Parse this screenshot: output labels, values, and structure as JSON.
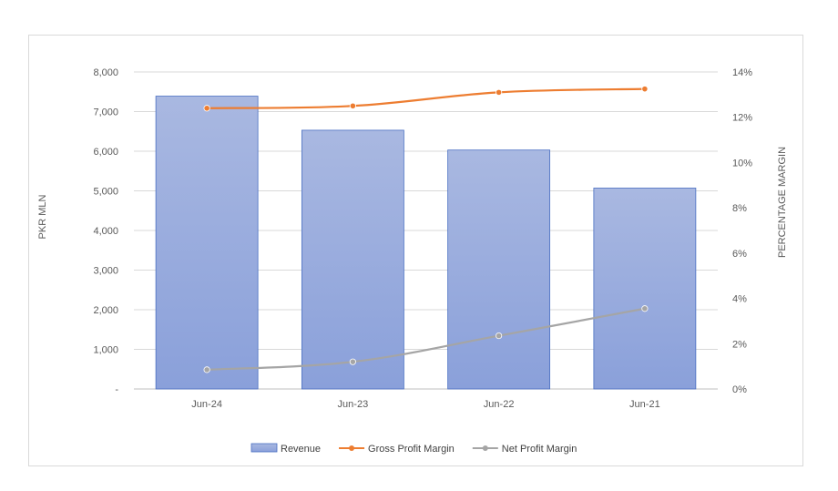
{
  "chart_data": {
    "type": "bar",
    "categories": [
      "Jun-24",
      "Jun-23",
      "Jun-22",
      "Jun-21"
    ],
    "series": [
      {
        "name": "Revenue",
        "type": "bar",
        "axis": "left",
        "values": [
          7390,
          6530,
          6030,
          5070
        ],
        "color": "#8ea5dc"
      },
      {
        "name": "Gross Profit Margin",
        "type": "line",
        "axis": "right",
        "values": [
          12.4,
          12.5,
          13.1,
          13.25
        ],
        "color": "#ed7d31"
      },
      {
        "name": "Net Profit Margin",
        "type": "line",
        "axis": "right",
        "values": [
          0.85,
          1.2,
          2.35,
          3.55
        ],
        "color": "#a5a5a5"
      }
    ],
    "title": "",
    "ylabel": "PKR MLN",
    "y2label": "PERCENTAGE MARGIN",
    "ylim": [
      0,
      8000
    ],
    "y2lim": [
      0,
      14
    ],
    "yticks": [
      "-",
      "1,000",
      "2,000",
      "3,000",
      "4,000",
      "5,000",
      "6,000",
      "7,000",
      "8,000"
    ],
    "y2ticks": [
      "0%",
      "2%",
      "4%",
      "6%",
      "8%",
      "10%",
      "12%",
      "14%"
    ],
    "grid": true,
    "legend": "bottom"
  }
}
